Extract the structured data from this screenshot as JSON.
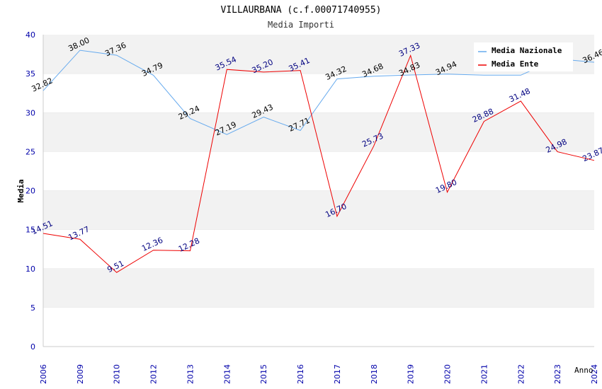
{
  "chart_data": {
    "type": "line",
    "title": "VILLAURBANA (c.f.00071740955)",
    "subtitle": "Media Importi",
    "xlabel": "Anno",
    "ylabel": "Media",
    "ylim": [
      0,
      40
    ],
    "yticks": [
      "0",
      "5",
      "10",
      "15",
      "20",
      "25",
      "30",
      "35",
      "40"
    ],
    "categories": [
      "2006",
      "2009",
      "2010",
      "2012",
      "2013",
      "2014",
      "2015",
      "2016",
      "2017",
      "2018",
      "2019",
      "2020",
      "2021",
      "2022",
      "2023",
      "2024"
    ],
    "grid": "horizontal bands",
    "legend_position": "top-right",
    "series": [
      {
        "name": "Media Nazionale",
        "color": "#66aaee",
        "label_color": "#000000",
        "values": [
          32.82,
          38.0,
          37.36,
          34.79,
          29.24,
          27.19,
          29.43,
          27.71,
          34.32,
          34.68,
          34.83,
          34.94,
          34.8,
          34.8,
          36.9,
          36.46
        ],
        "labels": [
          "32.82",
          "38.00",
          "37.36",
          "34.79",
          "29.24",
          "27.19",
          "29.43",
          "27.71",
          "34.32",
          "34.68",
          "34.83",
          "34.94",
          "",
          "",
          "",
          "36.46"
        ]
      },
      {
        "name": "Media Ente",
        "color": "#ee0000",
        "label_color": "#000080",
        "values": [
          14.51,
          13.77,
          9.51,
          12.36,
          12.28,
          35.54,
          35.2,
          35.41,
          16.7,
          25.73,
          37.33,
          19.8,
          28.88,
          31.48,
          24.98,
          23.87
        ],
        "labels": [
          "14.51",
          "13.77",
          "9.51",
          "12.36",
          "12.28",
          "35.54",
          "35.20",
          "35.41",
          "16.70",
          "25.73",
          "37.33",
          "19.80",
          "28.88",
          "31.48",
          "24.98",
          "23.87"
        ]
      }
    ],
    "colors": {
      "band": "#f2f2f2",
      "axis": "#cccccc",
      "tick_text": "#0000aa",
      "title": "#000000",
      "subtitle": "#333333"
    }
  }
}
